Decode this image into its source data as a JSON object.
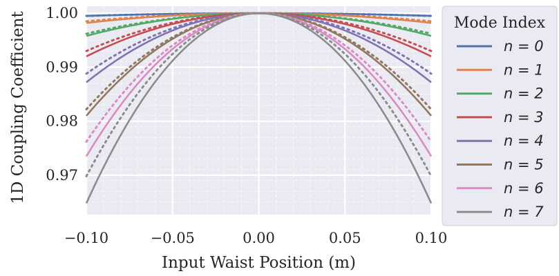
{
  "chart_data": {
    "type": "line",
    "xlabel": "Input Waist Position (m)",
    "ylabel": "1D Coupling Coefficient",
    "xlim": [
      -0.1,
      0.1
    ],
    "ylim": [
      0.9627,
      1.0013
    ],
    "x_ticks": [
      -0.1,
      -0.05,
      0.0,
      0.05,
      0.1
    ],
    "x_tick_labels": [
      "−0.10",
      "−0.05",
      "0.00",
      "0.05",
      "0.10"
    ],
    "y_ticks": [
      0.97,
      0.98,
      0.99,
      1.0
    ],
    "y_tick_labels": [
      "0.97",
      "0.98",
      "0.99",
      "1.00"
    ],
    "grid": true,
    "legend_title": "Mode Index",
    "legend_position": "outside-right",
    "style_note": "solid lines are exact values; dotted lines of the same color are the approximation",
    "series": [
      {
        "name": "n = 0",
        "color": "#4C72B0",
        "solid_edge": 0.9995,
        "dotted_edge": 0.9995
      },
      {
        "name": "n = 1",
        "color": "#DD8452",
        "solid_edge": 0.9982,
        "dotted_edge": 0.9985
      },
      {
        "name": "n = 2",
        "color": "#55A868",
        "solid_edge": 0.9958,
        "dotted_edge": 0.9962
      },
      {
        "name": "n = 3",
        "color": "#C44E52",
        "solid_edge": 0.992,
        "dotted_edge": 0.993
      },
      {
        "name": "n = 4",
        "color": "#8172B3",
        "solid_edge": 0.9872,
        "dotted_edge": 0.9888
      },
      {
        "name": "n = 5",
        "color": "#937860",
        "solid_edge": 0.981,
        "dotted_edge": 0.9822
      },
      {
        "name": "n = 6",
        "color": "#DA8BC3",
        "solid_edge": 0.9735,
        "dotted_edge": 0.9762
      },
      {
        "name": "n = 7",
        "color": "#8C8C8C",
        "solid_edge": 0.9648,
        "dotted_edge": 0.9698
      }
    ]
  }
}
